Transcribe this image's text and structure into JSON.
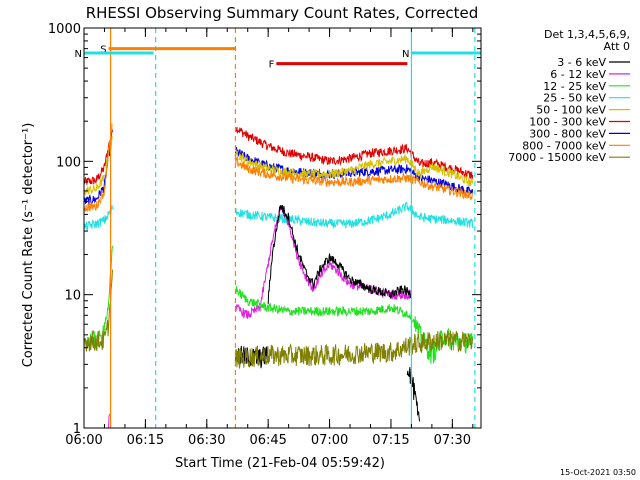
{
  "chart_data": {
    "type": "line",
    "title": "RHESSI Observing Summary Count Rates, Corrected",
    "xlabel": "Start Time (21-Feb-04 05:59:42)",
    "ylabel": "Corrected Count Rate (s⁻¹ detector⁻¹)",
    "y_scale": "log",
    "ylim": [
      1,
      1000
    ],
    "y_ticks": [
      {
        "value": 1,
        "label": "1"
      },
      {
        "value": 10,
        "label": "10"
      },
      {
        "value": 100,
        "label": "100"
      },
      {
        "value": 1000,
        "label": "1000"
      }
    ],
    "xlim_minutes": [
      0,
      97
    ],
    "x_ticks": [
      {
        "minute": 0,
        "label": "06:00"
      },
      {
        "minute": 15,
        "label": "06:15"
      },
      {
        "minute": 30,
        "label": "06:30"
      },
      {
        "minute": 45,
        "label": "06:45"
      },
      {
        "minute": 60,
        "label": "07:00"
      },
      {
        "minute": 75,
        "label": "07:15"
      },
      {
        "minute": 90,
        "label": "07:30"
      }
    ],
    "legend": {
      "header1": "Det 1,3,4,5,6,9,",
      "header2": "Att 0",
      "placement": "right",
      "entries": [
        {
          "label": "3 - 6 keV",
          "color": "#000000"
        },
        {
          "label": "6 - 12 keV",
          "color": "#e020e0"
        },
        {
          "label": "12 - 25 keV",
          "color": "#20e020"
        },
        {
          "label": "25 - 50 keV",
          "color": "#20e0e0"
        },
        {
          "label": "50 - 100 keV",
          "color": "#d8c000"
        },
        {
          "label": "100 - 300 keV",
          "color": "#e00000"
        },
        {
          "label": "300 - 800 keV",
          "color": "#0000e0"
        },
        {
          "label": "800 - 7000 keV",
          "color": "#ff8000"
        },
        {
          "label": "7000 - 15000 keV",
          "color": "#808000"
        }
      ]
    },
    "flags": [
      {
        "label": "S",
        "color": "#ff8000",
        "start_min": 6,
        "end_min": 37,
        "value": 700
      },
      {
        "label": "N",
        "color": "#20e0e0",
        "start_min": 0,
        "end_min": 17,
        "value": 650
      },
      {
        "label": "N",
        "color": "#20e0e0",
        "start_min": 80,
        "end_min": 97,
        "value": 650
      },
      {
        "label": "F",
        "color": "#e00000",
        "start_min": 47,
        "end_min": 79,
        "value": 540
      }
    ],
    "marker_lines": [
      {
        "minute": 6.5,
        "color": "#ff8000",
        "style": "solid"
      },
      {
        "minute": 17.5,
        "color": "#20e0e0",
        "style": "dashed"
      },
      {
        "minute": 37,
        "color": "#ff8000",
        "style": "dashed"
      },
      {
        "minute": 80,
        "color": "#20e0e0",
        "style": "solid"
      },
      {
        "minute": 95.5,
        "color": "#20e0e0",
        "style": "dashed"
      }
    ],
    "series": [
      {
        "name": "100 - 300 keV",
        "color": "#e00000",
        "segments": [
          {
            "x": [
              0,
              3,
              5,
              6,
              7
            ],
            "y": [
              70,
              72,
              90,
              130,
              170
            ]
          },
          {
            "x": [
              37,
              40,
              45,
              50,
              55,
              60,
              65,
              70,
              75,
              79,
              82,
              85,
              90,
              95
            ],
            "y": [
              180,
              155,
              130,
              115,
              108,
              100,
              105,
              115,
              120,
              125,
              95,
              98,
              88,
              78
            ]
          }
        ]
      },
      {
        "name": "300 - 800 keV",
        "color": "#0000e0",
        "segments": [
          {
            "x": [
              0,
              3,
              5,
              6,
              7
            ],
            "y": [
              50,
              52,
              65,
              110,
              150
            ]
          },
          {
            "x": [
              37,
              40,
              45,
              50,
              55,
              60,
              65,
              70,
              75,
              79,
              82,
              85,
              90,
              95
            ],
            "y": [
              120,
              105,
              92,
              85,
              82,
              80,
              82,
              84,
              86,
              88,
              75,
              72,
              65,
              58
            ]
          }
        ]
      },
      {
        "name": "50 - 100 keV",
        "color": "#d8c000",
        "segments": [
          {
            "x": [
              0,
              3,
              5,
              6,
              7
            ],
            "y": [
              60,
              62,
              75,
              120,
              160
            ]
          },
          {
            "x": [
              37,
              40,
              45,
              50,
              55,
              60,
              65,
              70,
              75,
              79,
              82,
              85,
              90,
              95
            ],
            "y": [
              115,
              100,
              88,
              82,
              80,
              80,
              85,
              95,
              100,
              105,
              80,
              92,
              80,
              68
            ]
          }
        ]
      },
      {
        "name": "800 - 7000 keV",
        "color": "#ff8000",
        "segments": [
          {
            "x": [
              0,
              3,
              5,
              6,
              7
            ],
            "y": [
              45,
              46,
              60,
              120,
              190
            ]
          },
          {
            "x": [
              37,
              40,
              45,
              50,
              55,
              60,
              65,
              70,
              75,
              79,
              82,
              85,
              90,
              95
            ],
            "y": [
              100,
              88,
              80,
              75,
              72,
              70,
              70,
              72,
              74,
              75,
              70,
              65,
              60,
              55
            ]
          }
        ]
      },
      {
        "name": "25 - 50 keV",
        "color": "#20e0e0",
        "segments": [
          {
            "x": [
              0,
              3,
              5,
              6,
              7
            ],
            "y": [
              32,
              34,
              36,
              40,
              45
            ]
          },
          {
            "x": [
              37,
              40,
              45,
              50,
              55,
              60,
              65,
              70,
              75,
              79,
              82,
              85,
              90,
              95
            ],
            "y": [
              42,
              40,
              38,
              37,
              35,
              34,
              34,
              36,
              40,
              46,
              38,
              37,
              36,
              34
            ]
          }
        ]
      },
      {
        "name": "6 - 12 keV",
        "color": "#e020e0",
        "segments": [
          {
            "x": [
              6,
              6.3
            ],
            "y": [
              1,
              1.6
            ]
          },
          {
            "x": [
              37,
              40,
              43,
              46,
              48,
              50,
              52,
              54,
              56,
              58,
              60,
              62,
              65,
              70,
              75,
              80
            ],
            "y": [
              8,
              7,
              8,
              25,
              45,
              35,
              20,
              14,
              11,
              14,
              17,
              15,
              12,
              11,
              10,
              10
            ]
          }
        ]
      },
      {
        "name": "3 - 6 keV",
        "color": "#000000",
        "segments": [
          {
            "x": [
              37,
              40,
              43,
              45
            ],
            "y": [
              3.5,
              3.4,
              3.3,
              3.6
            ]
          },
          {
            "x": [
              45,
              46,
              48,
              50,
              52,
              54,
              56,
              58,
              60,
              62,
              65,
              70,
              75,
              78,
              80
            ],
            "y": [
              9,
              20,
              47,
              38,
              22,
              15,
              12,
              16,
              19,
              17,
              13,
              11,
              10,
              11,
              10
            ]
          },
          {
            "x": [
              79,
              80,
              81,
              82
            ],
            "y": [
              3,
              2.4,
              1.6,
              1
            ]
          }
        ]
      },
      {
        "name": "12 - 25 keV",
        "color": "#20e020",
        "segments": [
          {
            "x": [
              0,
              4,
              6,
              7
            ],
            "y": [
              4.5,
              4.5,
              8,
              25
            ]
          },
          {
            "x": [
              37,
              40,
              45,
              50,
              55,
              60,
              65,
              70,
              75,
              80,
              82,
              85,
              88,
              90,
              95
            ],
            "y": [
              11,
              9,
              8,
              7.5,
              7.5,
              7.5,
              7.5,
              7.5,
              8,
              7,
              5,
              3.5,
              5,
              4.5,
              4.3
            ]
          }
        ]
      },
      {
        "name": "7000 - 15000 keV",
        "color": "#808000",
        "segments": [
          {
            "x": [
              0,
              3,
              5,
              6,
              7
            ],
            "y": [
              4.5,
              4.5,
              4.5,
              6,
              15
            ]
          },
          {
            "x": [
              37,
              40,
              45,
              50,
              55,
              60,
              65,
              70,
              75,
              80,
              85,
              90,
              95
            ],
            "y": [
              3.3,
              3.4,
              3.5,
              3.5,
              3.5,
              3.5,
              3.6,
              3.7,
              3.7,
              4.2,
              4.5,
              4.5,
              4.5
            ]
          }
        ]
      }
    ]
  },
  "footer": {
    "timestamp": "15-Oct-2021 03:50"
  }
}
